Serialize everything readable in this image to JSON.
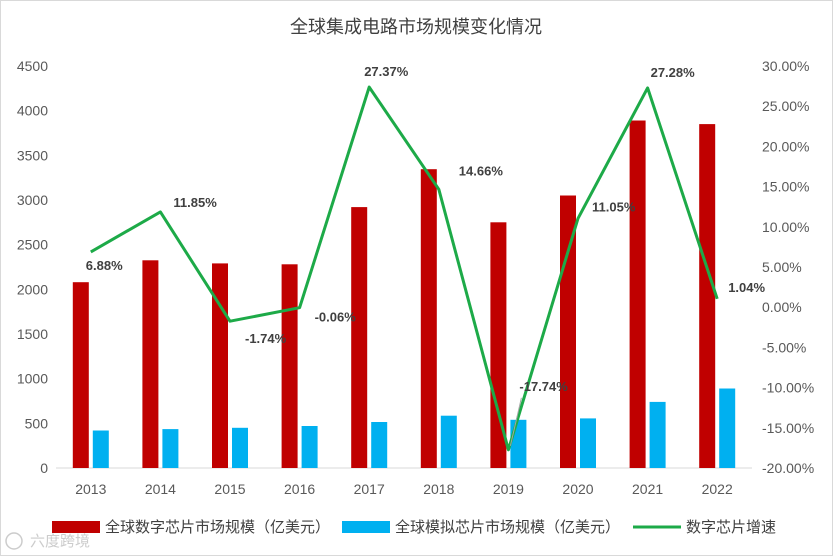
{
  "chart_data": {
    "type": "bar",
    "title": "全球集成电路市场规模变化情况",
    "categories": [
      "2013",
      "2014",
      "2015",
      "2016",
      "2017",
      "2018",
      "2019",
      "2020",
      "2021",
      "2022"
    ],
    "series": [
      {
        "name": "全球数字芯片市场规模（亿美元）",
        "type": "bar",
        "axis": "left",
        "color": "#c00000",
        "values": [
          2080,
          2325,
          2290,
          2280,
          2920,
          3345,
          2750,
          3050,
          3890,
          3850
        ]
      },
      {
        "name": "全球模拟芯片市场规模（亿美元）",
        "type": "bar",
        "axis": "left",
        "color": "#00b0f0",
        "values": [
          420,
          435,
          450,
          470,
          515,
          585,
          540,
          555,
          740,
          890
        ]
      },
      {
        "name": "数字芯片增速",
        "type": "line",
        "axis": "right",
        "color": "#1daa48",
        "values": [
          6.88,
          11.85,
          -1.74,
          -0.06,
          27.37,
          14.66,
          -17.74,
          11.05,
          27.28,
          1.04
        ],
        "data_labels": [
          "6.88%",
          "11.85%",
          "-1.74%",
          "-0.06%",
          "27.37%",
          "14.66%",
          "-17.74%",
          "11.05%",
          "27.28%",
          "1.04%"
        ]
      }
    ],
    "y_left": {
      "range": [
        0,
        4500
      ],
      "ticks": [
        "0",
        "500",
        "1000",
        "1500",
        "2000",
        "2500",
        "3000",
        "3500",
        "4000",
        "4500"
      ]
    },
    "y_right": {
      "range": [
        -20,
        30
      ],
      "ticks": [
        "-20.00%",
        "-15.00%",
        "-10.00%",
        "-5.00%",
        "0.00%",
        "5.00%",
        "10.00%",
        "15.00%",
        "20.00%",
        "25.00%",
        "30.00%"
      ]
    },
    "grid": false,
    "legend": "bottom"
  },
  "watermark": "六度跨境"
}
